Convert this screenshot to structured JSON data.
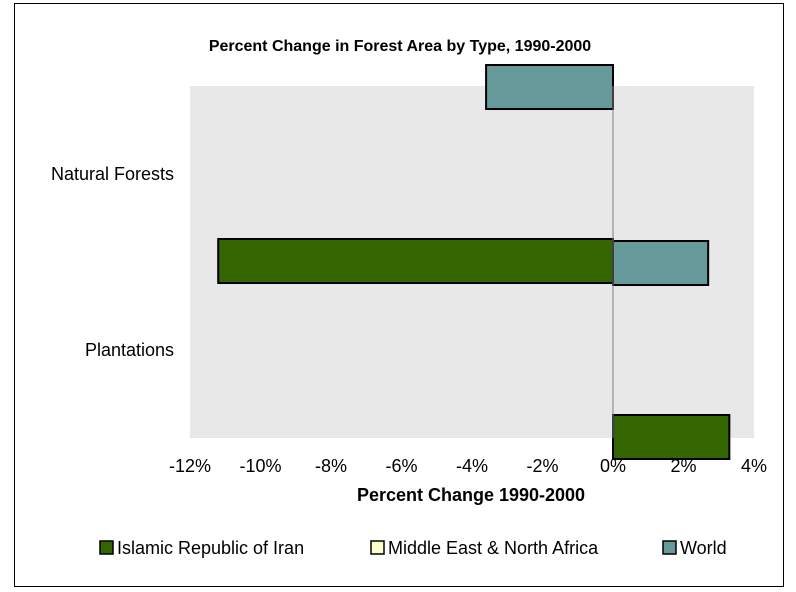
{
  "chart_data": {
    "type": "bar",
    "orientation": "horizontal",
    "title": "Percent Change in Forest Area by Type, 1990-2000",
    "xlabel": "Percent Change 1990-2000",
    "ylabel": "",
    "categories": [
      "Natural Forests",
      "Plantations"
    ],
    "xlim": [
      -12,
      4
    ],
    "xticks": [
      -12,
      -10,
      -8,
      -6,
      -4,
      -2,
      0,
      2,
      4
    ],
    "xtick_labels": [
      "-12%",
      "-10%",
      "-8%",
      "-6%",
      "-4%",
      "-2%",
      "0%",
      "2%",
      "4%"
    ],
    "grid": false,
    "plot_background": "#e8e8e8",
    "legend_position": "bottom",
    "series": [
      {
        "name": "Islamic Republic of Iran",
        "color": "#336600",
        "values": [
          -11.2,
          3.3
        ]
      },
      {
        "name": "Middle East & North Africa",
        "color": "#ffffcc",
        "values": [
          null,
          null
        ]
      },
      {
        "name": "World",
        "color": "#669999",
        "values": [
          -3.6,
          2.7
        ]
      }
    ]
  }
}
